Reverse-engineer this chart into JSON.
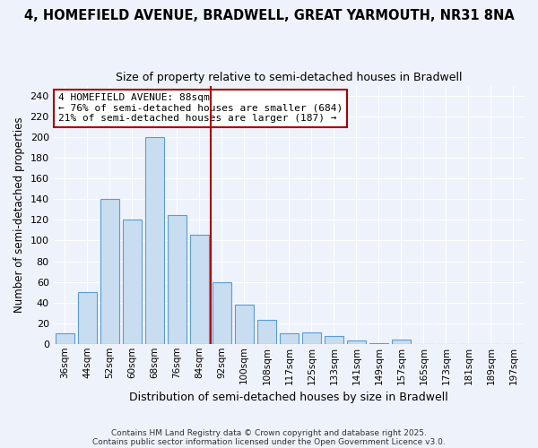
{
  "title": "4, HOMEFIELD AVENUE, BRADWELL, GREAT YARMOUTH, NR31 8NA",
  "subtitle": "Size of property relative to semi-detached houses in Bradwell",
  "xlabel": "Distribution of semi-detached houses by size in Bradwell",
  "ylabel": "Number of semi-detached properties",
  "bar_labels": [
    "36sqm",
    "44sqm",
    "52sqm",
    "60sqm",
    "68sqm",
    "76sqm",
    "84sqm",
    "92sqm",
    "100sqm",
    "108sqm",
    "117sqm",
    "125sqm",
    "133sqm",
    "141sqm",
    "149sqm",
    "157sqm",
    "165sqm",
    "173sqm",
    "181sqm",
    "189sqm",
    "197sqm"
  ],
  "bar_values": [
    10,
    50,
    140,
    120,
    200,
    125,
    106,
    60,
    38,
    23,
    10,
    11,
    8,
    3,
    1,
    4,
    0,
    0,
    0,
    0,
    0
  ],
  "bar_color": "#c9ddf0",
  "bar_edge_color": "#5b9bd5",
  "vline_color": "#aa0000",
  "vline_x": 6.5,
  "annotation_title": "4 HOMEFIELD AVENUE: 88sqm",
  "annotation_line1": "← 76% of semi-detached houses are smaller (684)",
  "annotation_line2": "21% of semi-detached houses are larger (187) →",
  "annotation_box_color": "#aa0000",
  "ylim": [
    0,
    250
  ],
  "yticks": [
    0,
    20,
    40,
    60,
    80,
    100,
    120,
    140,
    160,
    180,
    200,
    220,
    240
  ],
  "footnote1": "Contains HM Land Registry data © Crown copyright and database right 2025.",
  "footnote2": "Contains public sector information licensed under the Open Government Licence v3.0.",
  "bg_color": "#eef2fa",
  "grid_color": "#ffffff",
  "title_fontsize": 10.5,
  "subtitle_fontsize": 9
}
